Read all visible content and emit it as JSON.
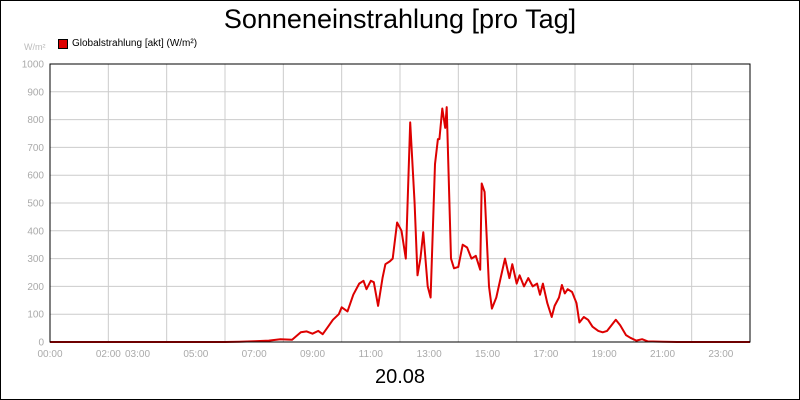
{
  "chart_data": {
    "type": "line",
    "title": "Sonneneinstrahlung [pro Tag]",
    "xlabel": "20.08",
    "ylabel": "W/m²",
    "ylim": [
      0,
      1000
    ],
    "xlim": [
      0,
      24
    ],
    "grid": true,
    "legend": "top-left",
    "y_ticks": [
      "0",
      "100",
      "200",
      "300",
      "400",
      "500",
      "600",
      "700",
      "800",
      "900",
      "1000"
    ],
    "x_ticks": [
      {
        "x": 0,
        "label": "00:00"
      },
      {
        "x": 2,
        "label": "02:00"
      },
      {
        "x": 3,
        "label": "03:00"
      },
      {
        "x": 5,
        "label": "05:00"
      },
      {
        "x": 7,
        "label": "07:00"
      },
      {
        "x": 9,
        "label": "09:00"
      },
      {
        "x": 11,
        "label": "11:00"
      },
      {
        "x": 13,
        "label": "13:00"
      },
      {
        "x": 15,
        "label": "15:00"
      },
      {
        "x": 17,
        "label": "17:00"
      },
      {
        "x": 19,
        "label": "19:00"
      },
      {
        "x": 21,
        "label": "21:00"
      },
      {
        "x": 23,
        "label": "23:00"
      }
    ],
    "x_grid": [
      0,
      2,
      4,
      6,
      8,
      10,
      12,
      14,
      16,
      18,
      20,
      22,
      24
    ],
    "series": [
      {
        "name": "Globalstrahlung [akt] (W/m²)",
        "color": "#dd0000",
        "points": [
          [
            0,
            0
          ],
          [
            6.0,
            0
          ],
          [
            6.5,
            1
          ],
          [
            7.0,
            3
          ],
          [
            7.5,
            5
          ],
          [
            7.9,
            10
          ],
          [
            8.3,
            8
          ],
          [
            8.6,
            35
          ],
          [
            8.8,
            38
          ],
          [
            9.0,
            30
          ],
          [
            9.2,
            40
          ],
          [
            9.35,
            28
          ],
          [
            9.5,
            50
          ],
          [
            9.7,
            80
          ],
          [
            9.9,
            100
          ],
          [
            10.0,
            125
          ],
          [
            10.2,
            110
          ],
          [
            10.4,
            170
          ],
          [
            10.6,
            210
          ],
          [
            10.75,
            220
          ],
          [
            10.85,
            190
          ],
          [
            11.0,
            220
          ],
          [
            11.1,
            215
          ],
          [
            11.25,
            130
          ],
          [
            11.4,
            230
          ],
          [
            11.5,
            280
          ],
          [
            11.65,
            290
          ],
          [
            11.75,
            300
          ],
          [
            11.9,
            430
          ],
          [
            12.05,
            400
          ],
          [
            12.2,
            300
          ],
          [
            12.35,
            790
          ],
          [
            12.5,
            500
          ],
          [
            12.6,
            240
          ],
          [
            12.7,
            300
          ],
          [
            12.8,
            395
          ],
          [
            12.95,
            200
          ],
          [
            13.05,
            160
          ],
          [
            13.2,
            640
          ],
          [
            13.3,
            730
          ],
          [
            13.35,
            730
          ],
          [
            13.45,
            840
          ],
          [
            13.55,
            770
          ],
          [
            13.6,
            845
          ],
          [
            13.75,
            300
          ],
          [
            13.85,
            265
          ],
          [
            14.0,
            270
          ],
          [
            14.15,
            350
          ],
          [
            14.3,
            340
          ],
          [
            14.45,
            300
          ],
          [
            14.6,
            310
          ],
          [
            14.75,
            260
          ],
          [
            14.8,
            570
          ],
          [
            14.9,
            540
          ],
          [
            15.05,
            200
          ],
          [
            15.15,
            120
          ],
          [
            15.3,
            160
          ],
          [
            15.45,
            230
          ],
          [
            15.6,
            300
          ],
          [
            15.75,
            230
          ],
          [
            15.85,
            280
          ],
          [
            16.0,
            210
          ],
          [
            16.1,
            240
          ],
          [
            16.25,
            200
          ],
          [
            16.4,
            230
          ],
          [
            16.55,
            200
          ],
          [
            16.7,
            210
          ],
          [
            16.8,
            170
          ],
          [
            16.9,
            210
          ],
          [
            17.05,
            140
          ],
          [
            17.2,
            90
          ],
          [
            17.3,
            130
          ],
          [
            17.45,
            160
          ],
          [
            17.55,
            205
          ],
          [
            17.65,
            175
          ],
          [
            17.75,
            190
          ],
          [
            17.9,
            180
          ],
          [
            18.05,
            140
          ],
          [
            18.15,
            70
          ],
          [
            18.3,
            90
          ],
          [
            18.45,
            80
          ],
          [
            18.6,
            55
          ],
          [
            18.8,
            40
          ],
          [
            18.95,
            35
          ],
          [
            19.1,
            40
          ],
          [
            19.25,
            60
          ],
          [
            19.4,
            80
          ],
          [
            19.55,
            60
          ],
          [
            19.75,
            25
          ],
          [
            19.9,
            15
          ],
          [
            20.1,
            5
          ],
          [
            20.3,
            10
          ],
          [
            20.5,
            2
          ],
          [
            21.0,
            1
          ],
          [
            21.5,
            0
          ],
          [
            24,
            0
          ]
        ]
      }
    ]
  }
}
